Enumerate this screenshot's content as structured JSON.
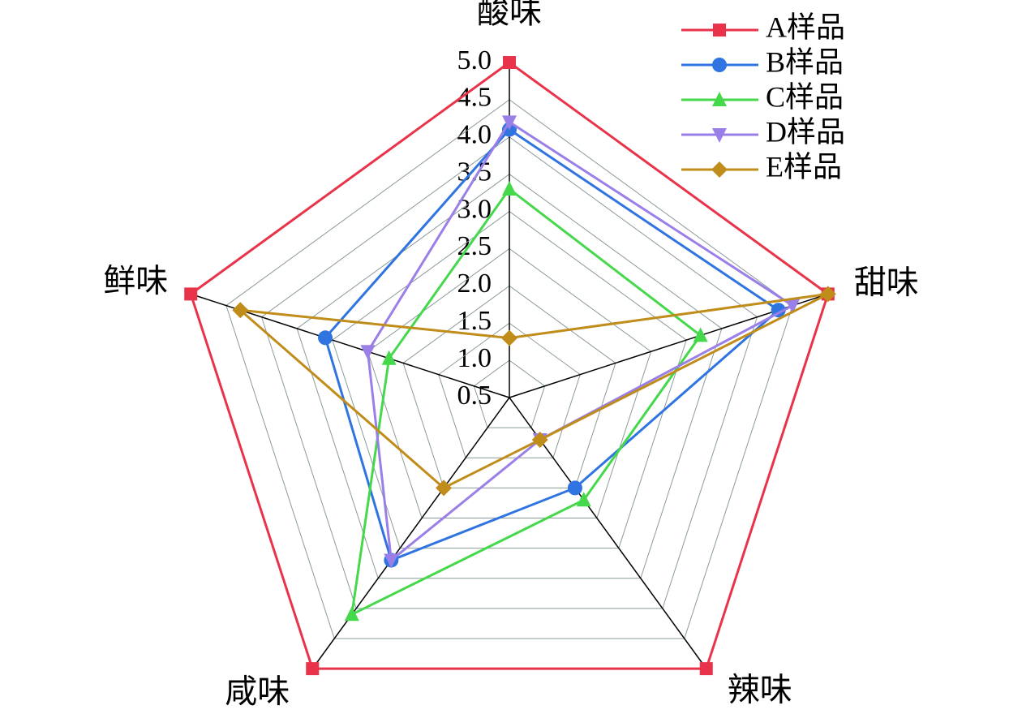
{
  "chart_data": {
    "type": "radar",
    "categories": [
      "酸味",
      "甜味",
      "辣味",
      "咸味",
      "鲜味"
    ],
    "rlim": [
      0.5,
      5.0
    ],
    "rticks": [
      0.5,
      {
        "value": 1.0,
        "label": "1.0"
      },
      1.5,
      {
        "value": 2.0,
        "label": "2.0"
      },
      2.5,
      {
        "value": 3.0,
        "label": "3.0"
      },
      3.5,
      {
        "value": 4.0,
        "label": "4.0"
      },
      4.5,
      {
        "value": 5.0,
        "label": "5.0"
      }
    ],
    "grid": true,
    "legend": "upper right",
    "series": [
      {
        "name": "A样品",
        "color": "#e8334a",
        "marker": "square",
        "values": [
          5.0,
          5.0,
          5.0,
          5.0,
          5.0
        ]
      },
      {
        "name": "B样品",
        "color": "#2f74e0",
        "marker": "circle",
        "values": [
          4.1,
          4.3,
          2.0,
          3.2,
          3.1
        ]
      },
      {
        "name": "C样品",
        "color": "#44d84a",
        "marker": "triangle-up",
        "values": [
          3.3,
          3.2,
          2.2,
          4.1,
          2.2
        ]
      },
      {
        "name": "D样品",
        "color": "#9a7fe8",
        "marker": "triangle-down",
        "values": [
          4.2,
          4.5,
          1.2,
          3.2,
          2.5
        ]
      },
      {
        "name": "E样品",
        "color": "#c08c1a",
        "marker": "diamond",
        "values": [
          1.3,
          5.0,
          1.2,
          2.0,
          4.3
        ]
      }
    ]
  }
}
